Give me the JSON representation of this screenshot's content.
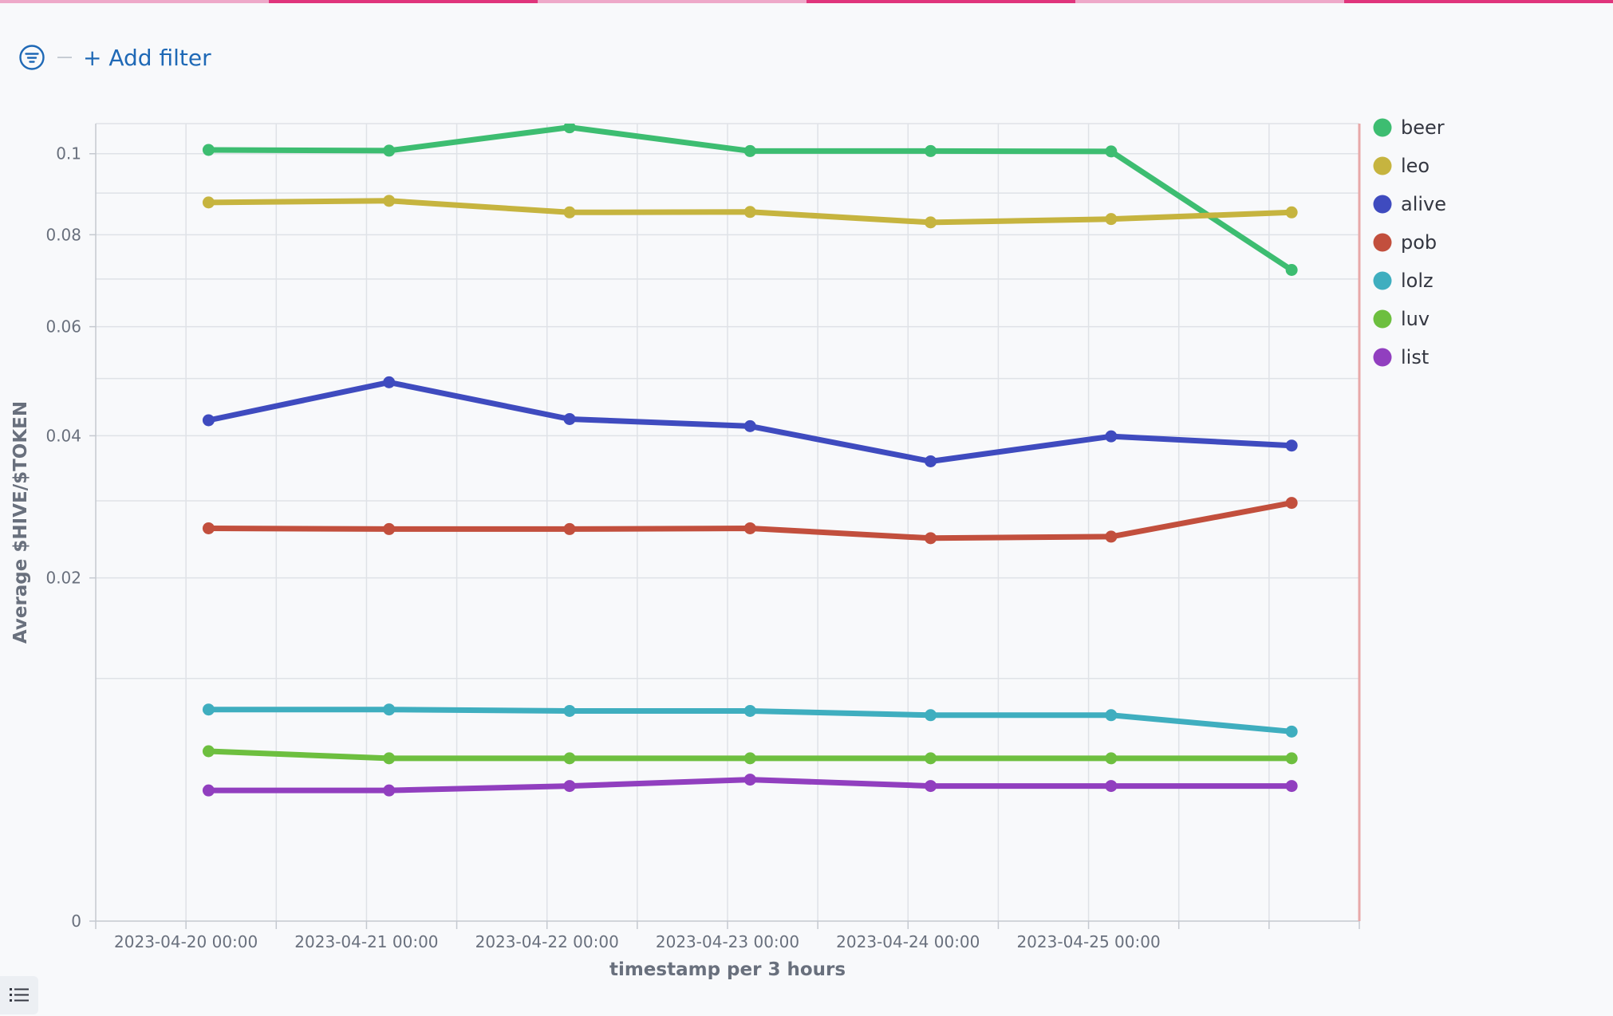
{
  "toolbar": {
    "filter_icon": "filter-icon",
    "add_filter_label": "+ Add filter"
  },
  "colors": {
    "top_stripe": [
      "#eea9c9",
      "#e0357c",
      "#eea9c9",
      "#e0357c",
      "#eea9c9",
      "#e0357c"
    ],
    "accent": "#1f69b6",
    "series": {
      "beer": "#3dbd71",
      "leo": "#c6b43f",
      "alive": "#3f4bbf",
      "pob": "#c24f3d",
      "lolz": "#3faebf",
      "luv": "#6dbf3f",
      "list": "#913fbf"
    }
  },
  "bottom_button_icon": "list-icon",
  "chart_data": {
    "type": "line",
    "xlabel": "timestamp per 3 hours",
    "ylabel": "Average $HIVE/$TOKEN",
    "x_tick_labels": [
      "2023-04-20 00:00",
      "2023-04-21 00:00",
      "2023-04-22 00:00",
      "2023-04-23 00:00",
      "2023-04-24 00:00",
      "2023-04-25 00:00"
    ],
    "y_tick_labels": [
      "0.1",
      "0.08",
      "0.06",
      "0.04",
      "0.02",
      "0"
    ],
    "y_scale": "sqrt",
    "ylim": [
      0,
      0.108
    ],
    "x": [
      "2023-04-20 03:00",
      "2023-04-21 03:00",
      "2023-04-22 03:00",
      "2023-04-23 03:00",
      "2023-04-24 03:00",
      "2023-04-25 03:00",
      "2023-04-26 03:00"
    ],
    "legend_position": "right",
    "grid": true,
    "series": [
      {
        "name": "beer",
        "values": [
          0.101,
          0.1008,
          0.107,
          0.1007,
          0.1007,
          0.1006,
          0.072
        ]
      },
      {
        "name": "leo",
        "values": [
          0.0877,
          0.0881,
          0.0853,
          0.0854,
          0.0829,
          0.0837,
          0.0853
        ]
      },
      {
        "name": "alive",
        "values": [
          0.0426,
          0.0493,
          0.0428,
          0.0416,
          0.0359,
          0.0399,
          0.0384
        ]
      },
      {
        "name": "pob",
        "values": [
          0.0262,
          0.0261,
          0.0261,
          0.0262,
          0.0249,
          0.0251,
          0.0297
        ]
      },
      {
        "name": "lolz",
        "values": [
          0.0076,
          0.0076,
          0.0075,
          0.0075,
          0.0072,
          0.0072,
          0.0061
        ]
      },
      {
        "name": "luv",
        "values": [
          0.0049,
          0.0045,
          0.0045,
          0.0045,
          0.0045,
          0.0045,
          0.0045
        ]
      },
      {
        "name": "list",
        "values": [
          0.0029,
          0.0029,
          0.0031,
          0.0034,
          0.0031,
          0.0031,
          0.0031
        ]
      }
    ]
  }
}
